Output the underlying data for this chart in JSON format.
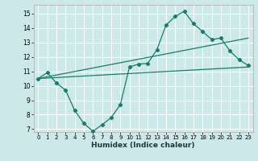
{
  "xlabel": "Humidex (Indice chaleur)",
  "bg_color": "#cce8e8",
  "grid_color": "#ffffff",
  "line_color": "#1a7a6e",
  "xlim": [
    -0.5,
    23.5
  ],
  "ylim": [
    6.8,
    15.6
  ],
  "yticks": [
    7,
    8,
    9,
    10,
    11,
    12,
    13,
    14,
    15
  ],
  "xticks": [
    0,
    1,
    2,
    3,
    4,
    5,
    6,
    7,
    8,
    9,
    10,
    11,
    12,
    13,
    14,
    15,
    16,
    17,
    18,
    19,
    20,
    21,
    22,
    23
  ],
  "line1_x": [
    0,
    1,
    2,
    3,
    4,
    5,
    6,
    7,
    8,
    9,
    10,
    11,
    12,
    13,
    14,
    15,
    16,
    17,
    18,
    19,
    20,
    21,
    22,
    23
  ],
  "line1_y": [
    10.5,
    10.9,
    10.2,
    9.7,
    8.3,
    7.4,
    6.85,
    7.3,
    7.8,
    8.7,
    11.3,
    11.5,
    11.55,
    12.5,
    14.2,
    14.8,
    15.15,
    14.3,
    13.75,
    13.2,
    13.3,
    12.4,
    11.8,
    11.4
  ],
  "line2_x": [
    0,
    23
  ],
  "line2_y": [
    10.5,
    11.3
  ],
  "line3_x": [
    0,
    23
  ],
  "line3_y": [
    10.5,
    13.3
  ]
}
